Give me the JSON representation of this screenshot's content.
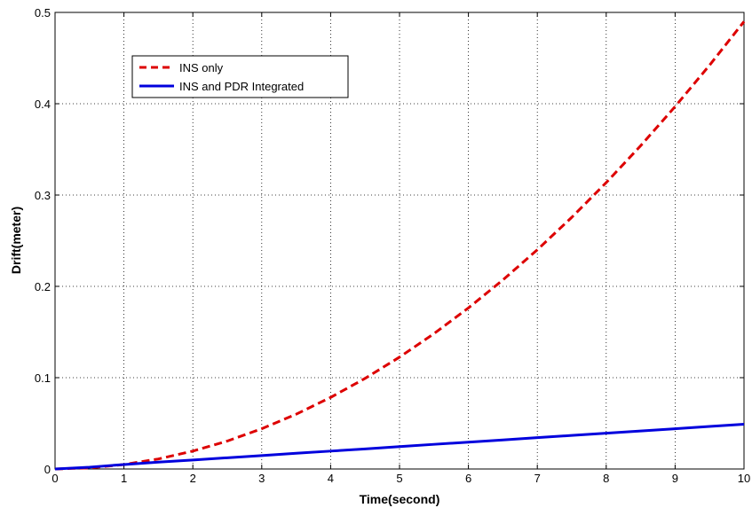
{
  "chart_data": {
    "type": "line",
    "xlabel": "Time(second)",
    "ylabel": "Drift(meter)",
    "xlim": [
      0,
      10
    ],
    "ylim": [
      0,
      0.5
    ],
    "xticks": [
      "0",
      "1",
      "2",
      "3",
      "4",
      "5",
      "6",
      "7",
      "8",
      "9",
      "10"
    ],
    "yticks": [
      "0",
      "0.1",
      "0.2",
      "0.3",
      "0.4",
      "0.5"
    ],
    "grid": true,
    "legend_position": "top-left",
    "x": [
      0,
      0.5,
      1,
      1.5,
      2,
      2.5,
      3,
      3.5,
      4,
      4.5,
      5,
      5.5,
      6,
      6.5,
      7,
      7.5,
      8,
      8.5,
      9,
      9.5,
      10
    ],
    "series": [
      {
        "name": "INS only",
        "color": "#dd0000",
        "style": "dashed",
        "values": [
          0,
          0.0012,
          0.0049,
          0.011,
          0.0196,
          0.0306,
          0.0441,
          0.06,
          0.0784,
          0.0992,
          0.1225,
          0.1482,
          0.1764,
          0.207,
          0.2401,
          0.2756,
          0.3136,
          0.354,
          0.3969,
          0.4422,
          0.49
        ]
      },
      {
        "name": "INS and PDR Integrated",
        "color": "#0000dd",
        "style": "solid",
        "values": [
          0,
          0.002,
          0.0049,
          0.0075,
          0.0098,
          0.0123,
          0.0147,
          0.0172,
          0.0196,
          0.022,
          0.0245,
          0.027,
          0.0294,
          0.0318,
          0.0343,
          0.0368,
          0.0392,
          0.0416,
          0.0441,
          0.0466,
          0.049
        ]
      }
    ]
  }
}
